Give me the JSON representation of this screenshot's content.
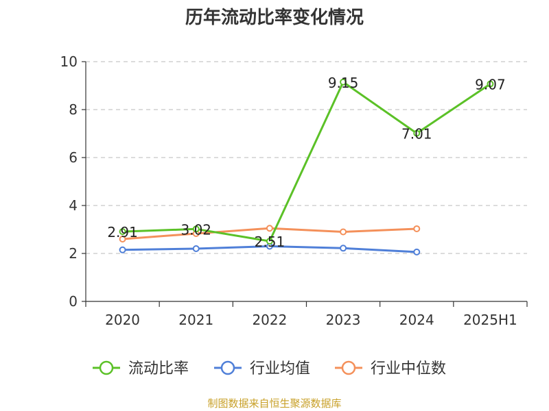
{
  "chart_data": {
    "type": "line",
    "title": "历年流动比率变化情况",
    "categories": [
      "2020",
      "2021",
      "2022",
      "2023",
      "2024",
      "2025H1"
    ],
    "ylim": [
      0,
      10
    ],
    "yticks": [
      "0",
      "2",
      "4",
      "6",
      "8",
      "10"
    ],
    "grid": true,
    "legend_position": "bottom",
    "series": [
      {
        "name": "流动比率",
        "color": "#5bc127",
        "values": [
          2.91,
          3.02,
          2.51,
          9.15,
          7.01,
          9.07
        ],
        "labels": [
          "2.91",
          "3.02",
          "2.51",
          "9.15",
          "7.01",
          "9.07"
        ]
      },
      {
        "name": "行业均值",
        "color": "#4f7fd8",
        "values": [
          2.15,
          2.2,
          2.3,
          2.22,
          2.06,
          null
        ]
      },
      {
        "name": "行业中位数",
        "color": "#f4905a",
        "values": [
          2.6,
          2.83,
          3.05,
          2.9,
          3.03,
          null
        ]
      }
    ]
  },
  "source_note": "制图数据来自恒生聚源数据库"
}
